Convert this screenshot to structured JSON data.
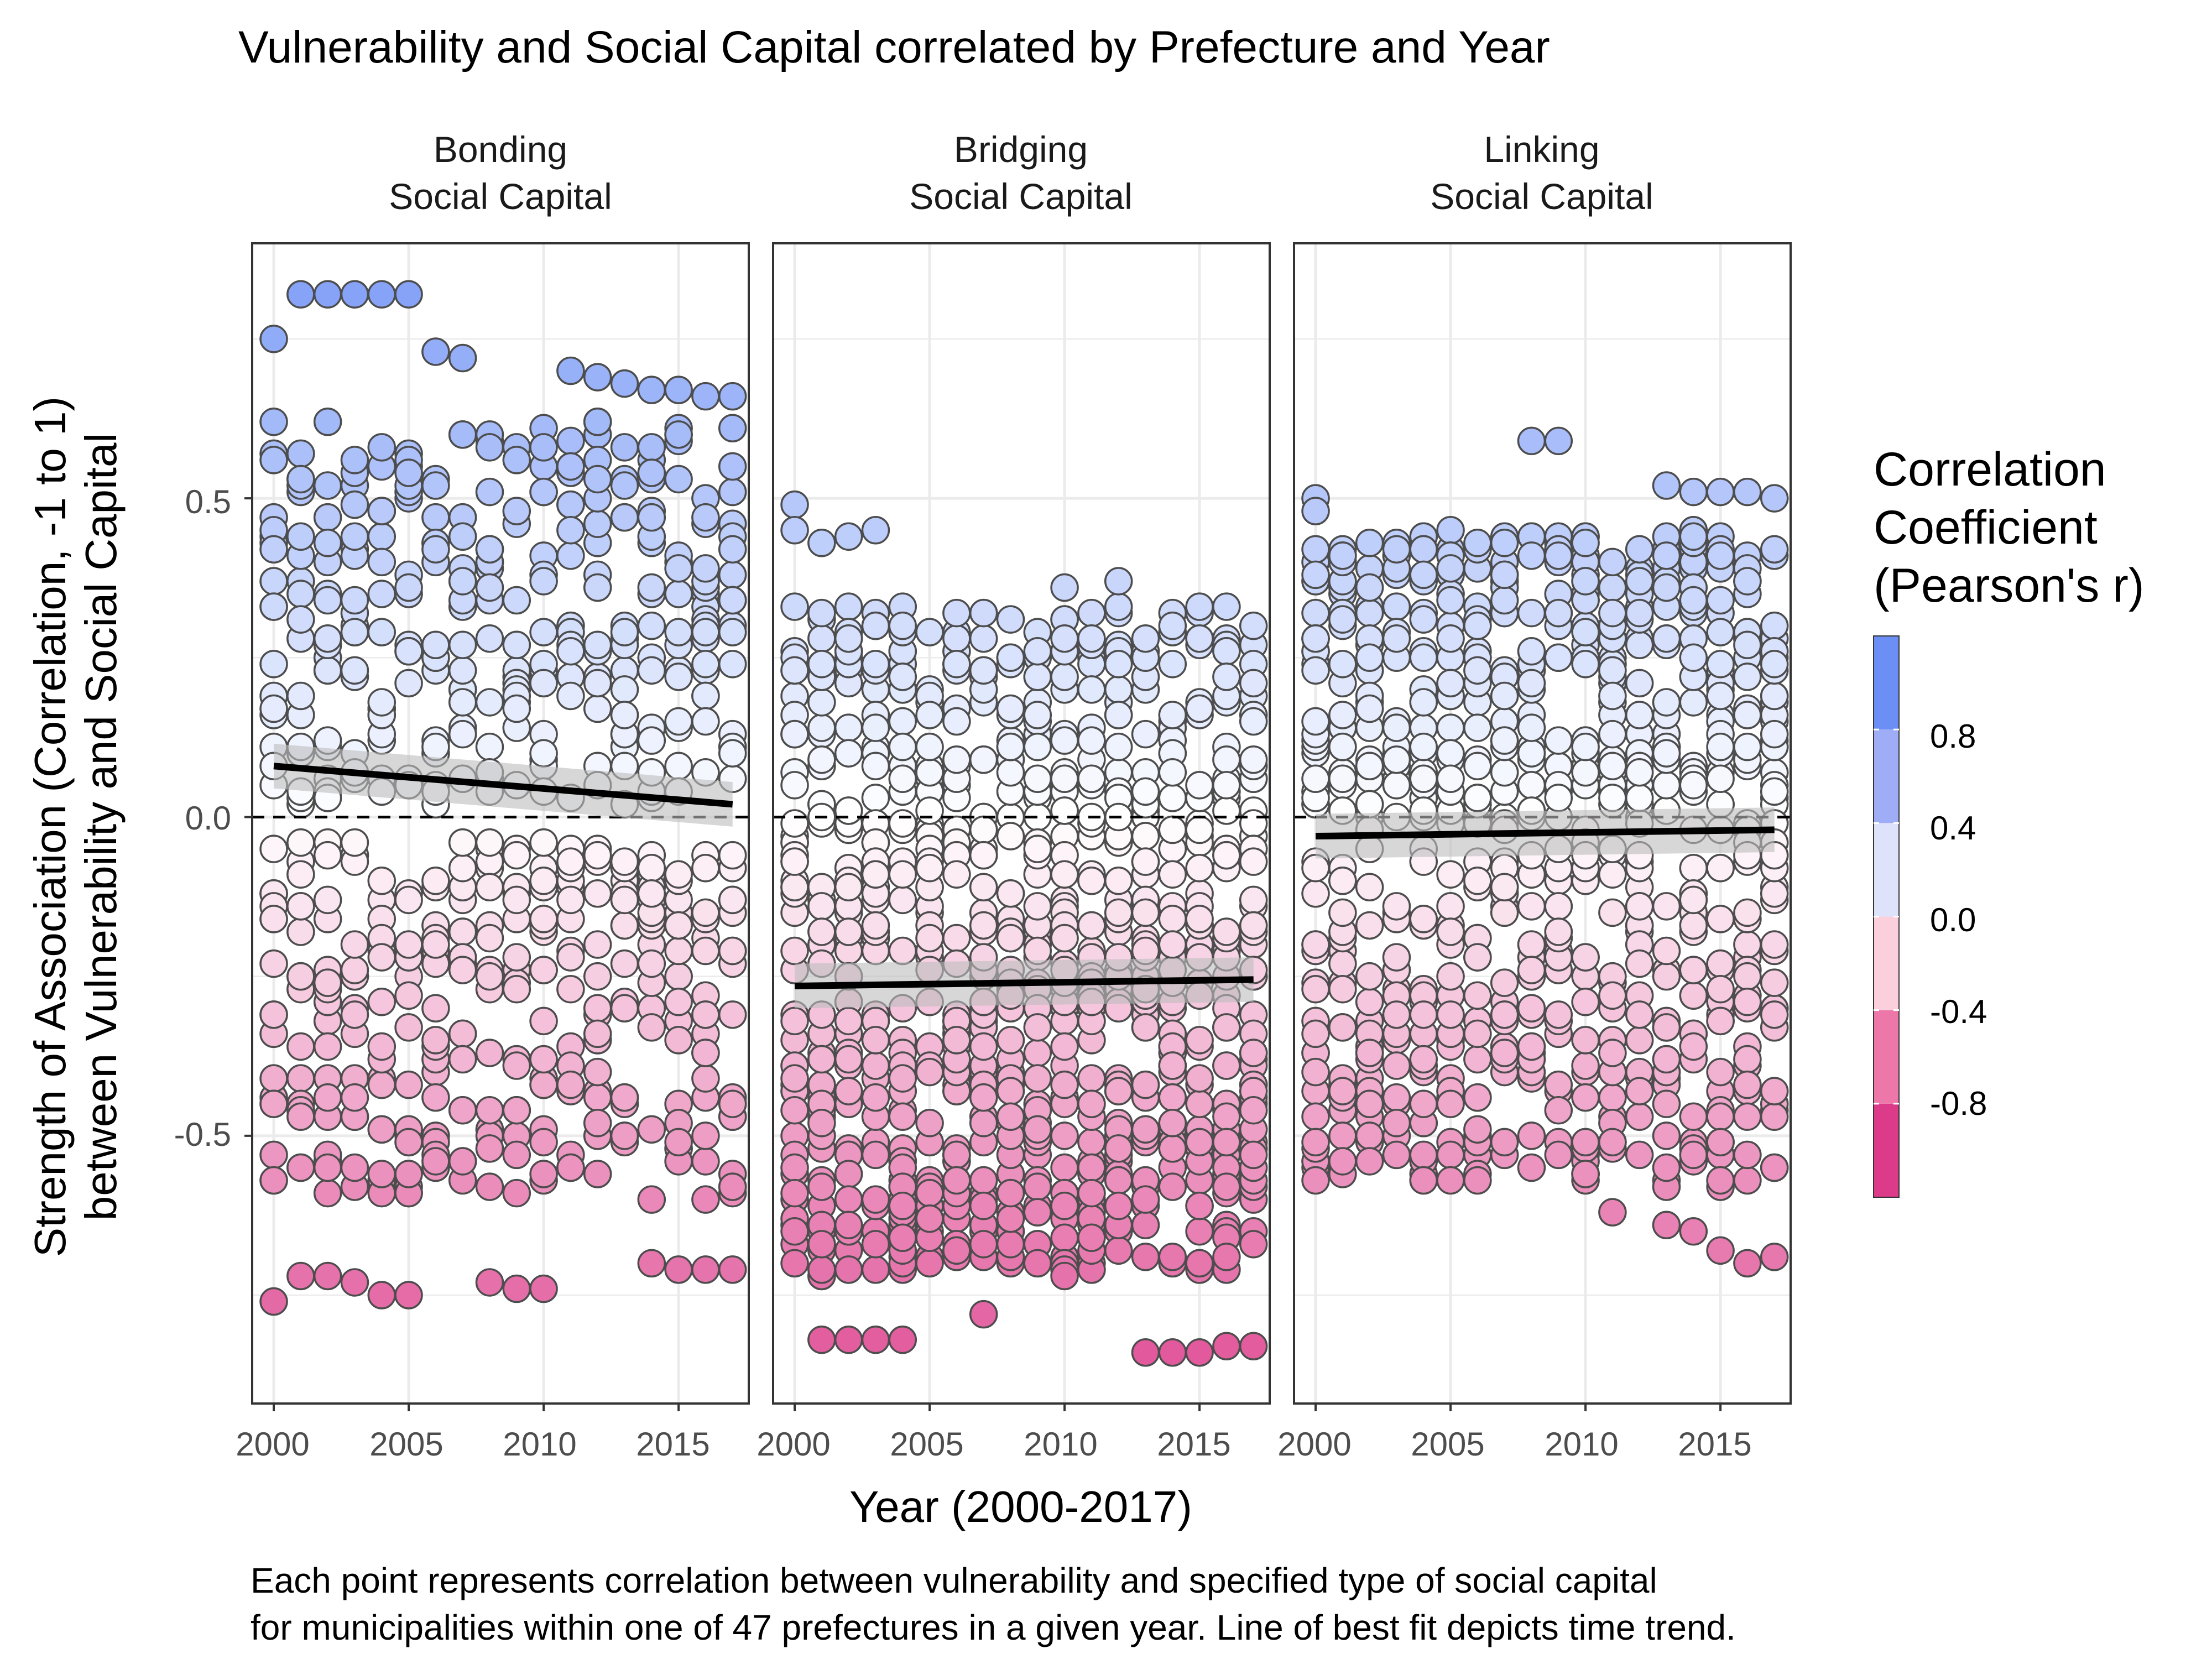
{
  "chart_data": {
    "type": "scatter",
    "title": "Vulnerability and Social Capital correlated by Prefecture and Year",
    "xlabel": "Year (2000-2017)",
    "ylabel_line1": "Strength of Association (Correlation, -1 to 1)",
    "ylabel_line2": "between Vulnerability and Social Capital",
    "xlim": [
      1999.2,
      2017.6
    ],
    "ylim": [
      -0.92,
      0.9
    ],
    "x_ticks": [
      2000,
      2005,
      2010,
      2015
    ],
    "x_tick_labels": [
      "2000",
      "2005",
      "2010",
      "2015"
    ],
    "y_ticks": [
      0.5,
      0.0,
      -0.5
    ],
    "y_tick_labels": [
      "0.5",
      "0.0",
      "-0.5"
    ],
    "reference_line": 0,
    "grid": true,
    "panels": [
      {
        "label_line1": "Bonding",
        "label_line2": "Social Capital",
        "trend": {
          "x": [
            2000,
            2017
          ],
          "y": [
            0.08,
            0.02
          ]
        },
        "extremes": [
          {
            "x": 2000,
            "y": 0.75
          },
          {
            "x": 2001,
            "y": 0.82
          },
          {
            "x": 2002,
            "y": 0.82
          },
          {
            "x": 2003,
            "y": 0.82
          },
          {
            "x": 2004,
            "y": 0.82
          },
          {
            "x": 2005,
            "y": 0.82
          },
          {
            "x": 2006,
            "y": 0.73
          },
          {
            "x": 2007,
            "y": 0.72
          },
          {
            "x": 2011,
            "y": 0.7
          },
          {
            "x": 2012,
            "y": 0.69
          },
          {
            "x": 2013,
            "y": 0.68
          },
          {
            "x": 2014,
            "y": 0.67
          },
          {
            "x": 2015,
            "y": 0.67
          },
          {
            "x": 2016,
            "y": 0.66
          },
          {
            "x": 2017,
            "y": 0.66
          },
          {
            "x": 2000,
            "y": -0.76
          },
          {
            "x": 2001,
            "y": -0.72
          },
          {
            "x": 2002,
            "y": -0.72
          },
          {
            "x": 2003,
            "y": -0.73
          },
          {
            "x": 2004,
            "y": -0.75
          },
          {
            "x": 2005,
            "y": -0.75
          },
          {
            "x": 2008,
            "y": -0.73
          },
          {
            "x": 2009,
            "y": -0.74
          },
          {
            "x": 2010,
            "y": -0.74
          },
          {
            "x": 2014,
            "y": -0.7
          },
          {
            "x": 2015,
            "y": -0.71
          },
          {
            "x": 2016,
            "y": -0.71
          },
          {
            "x": 2017,
            "y": -0.71
          }
        ]
      },
      {
        "label_line1": "Bridging",
        "label_line2": "Social Capital",
        "trend": {
          "x": [
            2000,
            2017
          ],
          "y": [
            -0.265,
            -0.255
          ]
        },
        "extremes": [
          {
            "x": 2000,
            "y": 0.49
          },
          {
            "x": 2000,
            "y": 0.45
          },
          {
            "x": 2001,
            "y": 0.43
          },
          {
            "x": 2002,
            "y": 0.44
          },
          {
            "x": 2003,
            "y": 0.45
          },
          {
            "x": 2010,
            "y": 0.36
          },
          {
            "x": 2012,
            "y": 0.37
          },
          {
            "x": 2001,
            "y": -0.82
          },
          {
            "x": 2002,
            "y": -0.82
          },
          {
            "x": 2003,
            "y": -0.82
          },
          {
            "x": 2004,
            "y": -0.82
          },
          {
            "x": 2007,
            "y": -0.78
          },
          {
            "x": 2013,
            "y": -0.84
          },
          {
            "x": 2014,
            "y": -0.84
          },
          {
            "x": 2015,
            "y": -0.84
          },
          {
            "x": 2016,
            "y": -0.83
          },
          {
            "x": 2017,
            "y": -0.83
          }
        ]
      },
      {
        "label_line1": "Linking",
        "label_line2": "Social Capital",
        "trend": {
          "x": [
            2000,
            2017
          ],
          "y": [
            -0.03,
            -0.02
          ]
        },
        "extremes": [
          {
            "x": 2000,
            "y": 0.5
          },
          {
            "x": 2000,
            "y": 0.48
          },
          {
            "x": 2001,
            "y": 0.41
          },
          {
            "x": 2008,
            "y": 0.59
          },
          {
            "x": 2009,
            "y": 0.59
          },
          {
            "x": 2013,
            "y": 0.52
          },
          {
            "x": 2014,
            "y": 0.51
          },
          {
            "x": 2015,
            "y": 0.51
          },
          {
            "x": 2016,
            "y": 0.51
          },
          {
            "x": 2017,
            "y": 0.5
          },
          {
            "x": 2000,
            "y": -0.51
          },
          {
            "x": 2001,
            "y": -0.54
          },
          {
            "x": 2002,
            "y": -0.54
          },
          {
            "x": 2003,
            "y": -0.53
          },
          {
            "x": 2004,
            "y": -0.57
          },
          {
            "x": 2011,
            "y": -0.62
          },
          {
            "x": 2013,
            "y": -0.64
          },
          {
            "x": 2014,
            "y": -0.65
          },
          {
            "x": 2015,
            "y": -0.68
          },
          {
            "x": 2016,
            "y": -0.7
          },
          {
            "x": 2017,
            "y": -0.69
          }
        ]
      }
    ],
    "legend": {
      "title_line1": "Correlation",
      "title_line2": "Coefficient",
      "title_line3": "(Pearson's r)",
      "placement": "right",
      "bins": [
        {
          "min": -1.2,
          "max": -0.8,
          "color": "#dc3b8a"
        },
        {
          "min": -0.8,
          "max": -0.4,
          "color": "#ec77a8"
        },
        {
          "min": -0.4,
          "max": 0.0,
          "color": "#fbd0dc"
        },
        {
          "min": 0.0,
          "max": 0.4,
          "color": "#dfe2fb"
        },
        {
          "min": 0.4,
          "max": 0.8,
          "color": "#9fadf7"
        },
        {
          "min": 0.8,
          "max": 1.2,
          "color": "#6b8ff5"
        }
      ],
      "tick_values": [
        0.8,
        0.4,
        0.0,
        -0.4,
        -0.8
      ],
      "tick_labels": [
        "0.8",
        "0.4",
        "0.0",
        "-0.4",
        "-0.8"
      ]
    },
    "caption_line1": "Each point represents correlation between vulnerability and specified type of social capital",
    "caption_line2": "for municipalities within one of 47 prefectures in a given year. Line of best fit depicts time trend."
  },
  "colors": {
    "neg_strong": "#dc3b8a",
    "neutral": "#ffffff",
    "pos_strong": "#6b8ff5",
    "point_outline": "#4d4d4d",
    "grid": "#ebebeb"
  }
}
